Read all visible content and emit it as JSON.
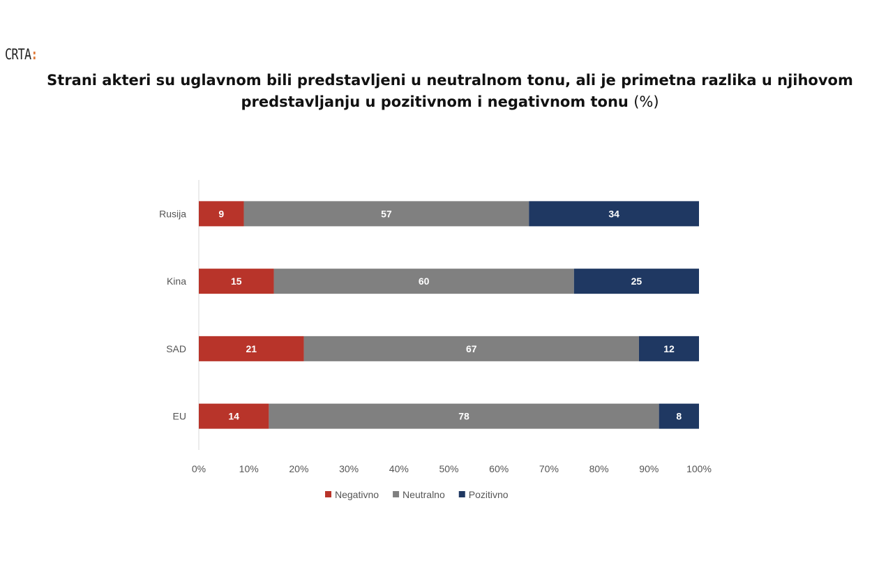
{
  "logo": {
    "text": "CRTA",
    "dots": ":"
  },
  "chart_data": {
    "type": "bar",
    "orientation": "horizontal-stacked-100",
    "title": "Strani akteri su uglavnom bili predstavljeni u neutralnom tonu, ali je primetna razlika u njihovom predstavljanju u pozitivnom i negativnom tonu",
    "title_unit": "(%)",
    "categories": [
      "Rusija",
      "Kina",
      "SAD",
      "EU"
    ],
    "series": [
      {
        "name": "Negativno",
        "color": "#b8342a",
        "values": [
          9,
          15,
          21,
          14
        ]
      },
      {
        "name": "Neutralno",
        "color": "#808080",
        "values": [
          57,
          60,
          67,
          78
        ]
      },
      {
        "name": "Pozitivno",
        "color": "#1f3862",
        "values": [
          34,
          25,
          12,
          8
        ]
      }
    ],
    "xlim": [
      0,
      100
    ],
    "xticks": [
      "0%",
      "10%",
      "20%",
      "30%",
      "40%",
      "50%",
      "60%",
      "70%",
      "80%",
      "90%",
      "100%"
    ],
    "legend": "bottom",
    "grid": false
  }
}
